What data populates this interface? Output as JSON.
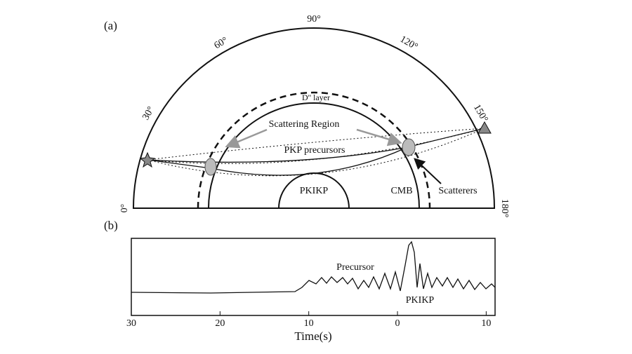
{
  "panel_a": {
    "label": "(a)",
    "angles": [
      "0°",
      "30°",
      "60°",
      "90°",
      "120°",
      "150°",
      "180°"
    ],
    "layer_label": "D'' layer",
    "scattering_region": "Scattering Region",
    "precursors_label": "PKP precursors",
    "core_label": "PKIKP",
    "cmb_label": "CMB",
    "scatterers_label": "Scatterers"
  },
  "panel_b": {
    "label": "(b)",
    "precursor_label": "Precursor",
    "main_label": "PKIKP",
    "x_label": "Time(s)",
    "xlim": [
      -30,
      11
    ],
    "xticks": [
      {
        "value": -30,
        "label": "30"
      },
      {
        "value": -20,
        "label": "20"
      },
      {
        "value": -10,
        "label": "10"
      },
      0,
      10
    ]
  }
}
